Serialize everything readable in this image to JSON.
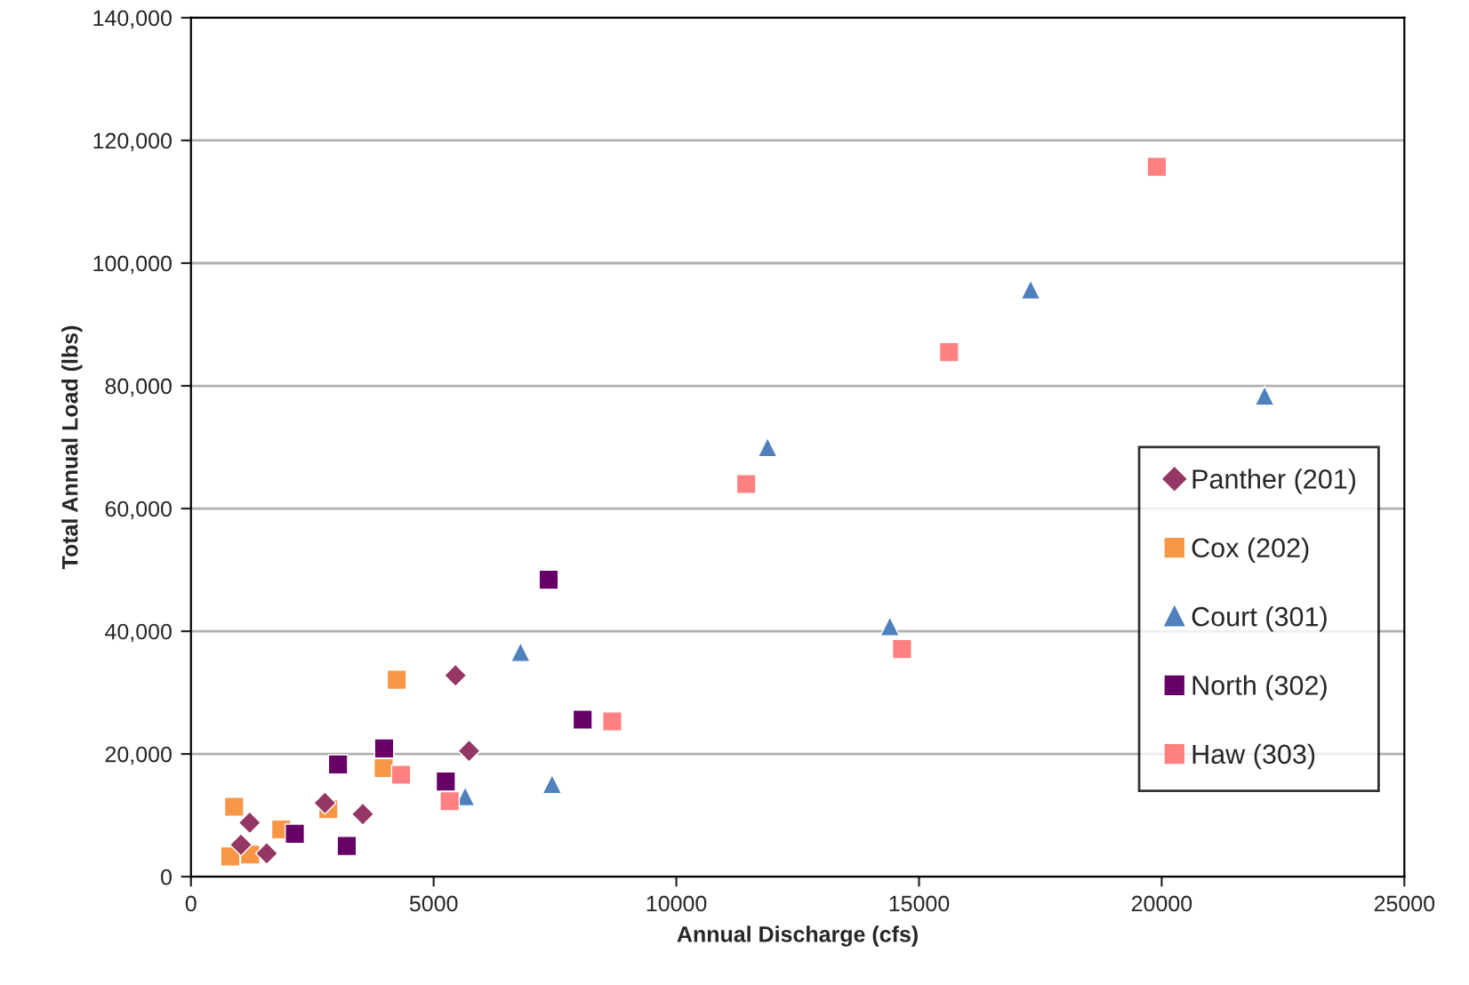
{
  "chart_data": {
    "type": "scatter",
    "xlabel": "Annual Discharge (cfs)",
    "ylabel": "Total Annual Load (lbs)",
    "xlim": [
      0,
      25000
    ],
    "xticks": [
      0,
      5000,
      10000,
      15000,
      20000,
      25000
    ],
    "ylim": [
      0,
      140000
    ],
    "yticks": [
      {
        "value": 0,
        "label": "0"
      },
      {
        "value": 20000,
        "label": "20,000"
      },
      {
        "value": 40000,
        "label": "40,000"
      },
      {
        "value": 60000,
        "label": "60,000"
      },
      {
        "value": 80000,
        "label": "80,000"
      },
      {
        "value": 100000,
        "label": "100,000"
      },
      {
        "value": 120000,
        "label": "120,000"
      },
      {
        "value": 140000,
        "label": "140,000"
      }
    ],
    "grid": "y",
    "legend": "right",
    "series": [
      {
        "name": "Panther (201)",
        "color": "#953764",
        "marker": "diamond",
        "x": [
          5450,
          5730,
          1210,
          3540,
          1560,
          1030,
          2760
        ],
        "values": [
          32800,
          20500,
          8800,
          10200,
          3800,
          5200,
          12000
        ]
      },
      {
        "name": "Cox (202)",
        "color": "#f79646",
        "marker": "square",
        "x": [
          4240,
          3970,
          890,
          2830,
          1860,
          810,
          1220
        ],
        "values": [
          32100,
          17700,
          11400,
          11000,
          7700,
          3300,
          3600
        ]
      },
      {
        "name": "Court (301)",
        "color": "#4f81bd",
        "marker": "triangle",
        "x": [
          6790,
          5650,
          7440,
          11880,
          14400,
          22120,
          17300
        ],
        "values": [
          36600,
          13100,
          15100,
          70000,
          40800,
          78400,
          95700
        ]
      },
      {
        "name": "North (302)",
        "color": "#660066",
        "marker": "square",
        "x": [
          3980,
          3030,
          2140,
          3210,
          5250,
          8070,
          7370
        ],
        "values": [
          20900,
          18300,
          7000,
          5000,
          15500,
          25600,
          48400
        ]
      },
      {
        "name": "Haw (303)",
        "color": "#ff8080",
        "marker": "square",
        "x": [
          4330,
          5330,
          8680,
          11440,
          14650,
          15620,
          19900
        ],
        "values": [
          16600,
          12300,
          25300,
          64000,
          37100,
          85500,
          115700
        ]
      }
    ]
  }
}
